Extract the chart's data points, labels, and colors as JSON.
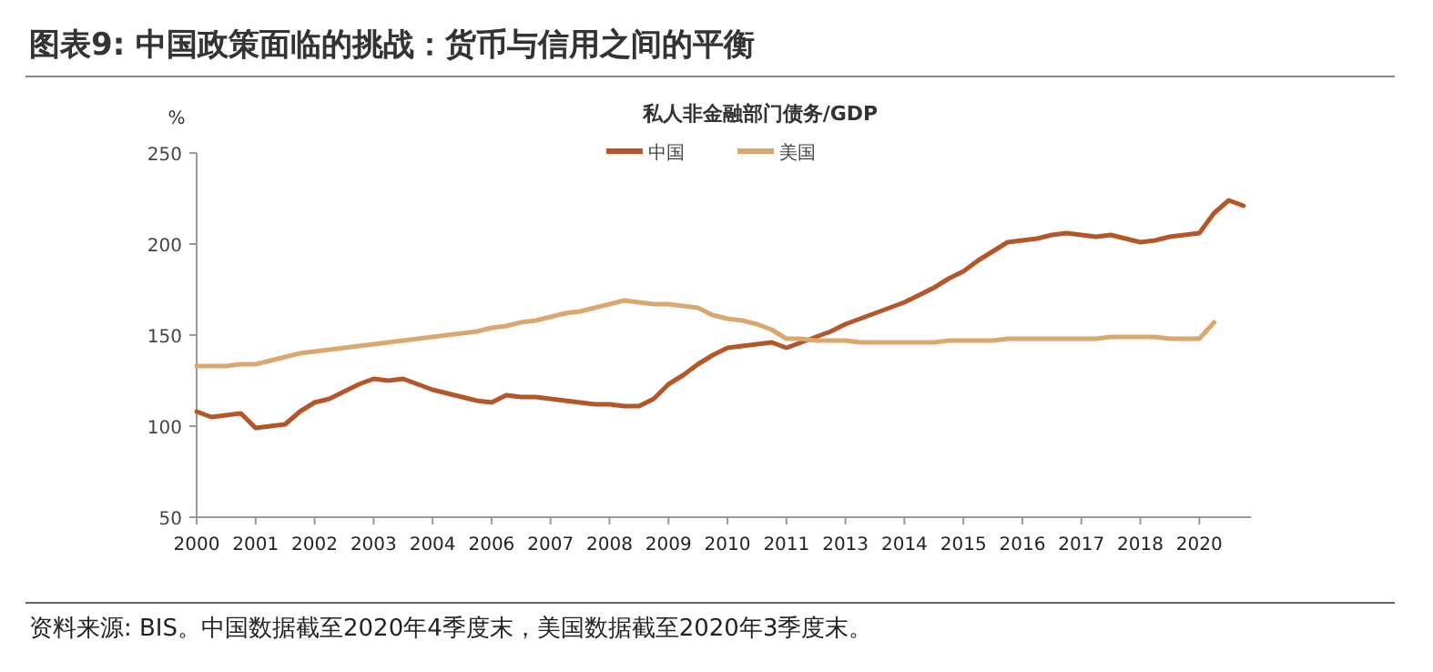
{
  "chart_data": {
    "type": "line",
    "title": "图表9: 中国政策面临的挑战：货币与信用之间的平衡",
    "subtitle": "私人非金融部门债务/GDP",
    "ylabel": "%",
    "legend": "top",
    "grid": false,
    "marker": "none",
    "line_style": "solid",
    "ylim": [
      50,
      250
    ],
    "yticks": [
      50,
      100,
      150,
      200,
      250
    ],
    "categories": [
      "2000",
      null,
      null,
      null,
      "2001",
      null,
      null,
      null,
      "2002",
      null,
      null,
      null,
      "2003",
      null,
      null,
      null,
      "2004",
      null,
      null,
      null,
      "2006",
      null,
      null,
      null,
      "2007",
      null,
      null,
      null,
      "2008",
      null,
      null,
      null,
      "2009",
      null,
      null,
      null,
      "2010",
      null,
      null,
      null,
      "2011",
      null,
      null,
      null,
      "2013",
      null,
      null,
      null,
      "2014",
      null,
      null,
      null,
      "2015",
      null,
      null,
      null,
      "2016",
      null,
      null,
      null,
      "2017",
      null,
      null,
      null,
      "2018",
      null,
      null,
      null,
      "2020",
      null,
      null,
      null
    ],
    "series": [
      {
        "name": "中国",
        "color": "#b5562a",
        "values": [
          108,
          105,
          106,
          107,
          99,
          100,
          101,
          108,
          113,
          115,
          119,
          123,
          126,
          125,
          126,
          123,
          120,
          118,
          116,
          114,
          113,
          117,
          116,
          116,
          115,
          114,
          113,
          112,
          112,
          111,
          111,
          115,
          123,
          128,
          134,
          139,
          143,
          144,
          145,
          146,
          143,
          146,
          149,
          152,
          156,
          159,
          162,
          165,
          168,
          172,
          176,
          181,
          185,
          191,
          196,
          201,
          202,
          203,
          205,
          206,
          205,
          204,
          205,
          203,
          201,
          202,
          204,
          205,
          206,
          217,
          224,
          221
        ]
      },
      {
        "name": "美国",
        "color": "#d9a870",
        "values": [
          133,
          133,
          133,
          134,
          134,
          136,
          138,
          140,
          141,
          142,
          143,
          144,
          145,
          146,
          147,
          148,
          149,
          150,
          151,
          152,
          154,
          155,
          157,
          158,
          160,
          162,
          163,
          165,
          167,
          169,
          168,
          167,
          167,
          166,
          165,
          161,
          159,
          158,
          156,
          153,
          148,
          148,
          147,
          147,
          147,
          146,
          146,
          146,
          146,
          146,
          146,
          147,
          147,
          147,
          147,
          148,
          148,
          148,
          148,
          148,
          148,
          148,
          149,
          149,
          149,
          149,
          148,
          148,
          148,
          157,
          null,
          null
        ]
      }
    ],
    "annotations": [
      "资料来源: BIS。中国数据截至2020年4季度末，美国数据截至2020年3季度末。"
    ]
  }
}
